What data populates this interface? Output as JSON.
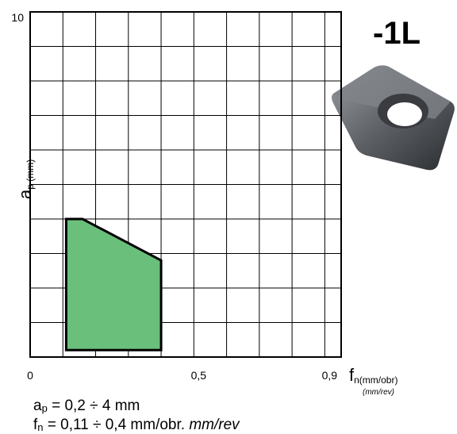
{
  "chart_data": {
    "type": "region",
    "title": "-1L",
    "x_label": {
      "main": "f",
      "sub": "n(mm/obr)",
      "sub2": "(mm/rev)"
    },
    "y_label": {
      "main": "a",
      "sub": "p (mm)"
    },
    "x": [
      0.11,
      0.11,
      0.16,
      0.4,
      0.4
    ],
    "y": [
      0.2,
      4,
      4,
      2.8,
      0.2
    ],
    "color": "#6abf7b",
    "xlim": [
      0,
      0.95
    ],
    "ylim": [
      0,
      10
    ],
    "xticks": [
      0,
      {
        "value": 0.5,
        "label": "0,5"
      },
      {
        "value": 0.9,
        "label": "0,9"
      }
    ],
    "yticks": [
      10
    ],
    "xgrid": [
      0.1,
      0.2,
      0.3,
      0.4,
      0.5,
      0.6,
      0.7,
      0.8,
      0.9
    ],
    "ygrid": [
      1,
      2,
      3,
      4,
      5,
      6,
      7,
      8,
      9
    ],
    "notes": [
      {
        "main": "a",
        "sub": "p",
        "text": " = 0,2 ÷ 4 mm"
      },
      {
        "main": "f",
        "sub": "n",
        "text": " = 0,11 ÷ 0,4 mm/obr. ",
        "italic": "mm/rev"
      }
    ]
  }
}
